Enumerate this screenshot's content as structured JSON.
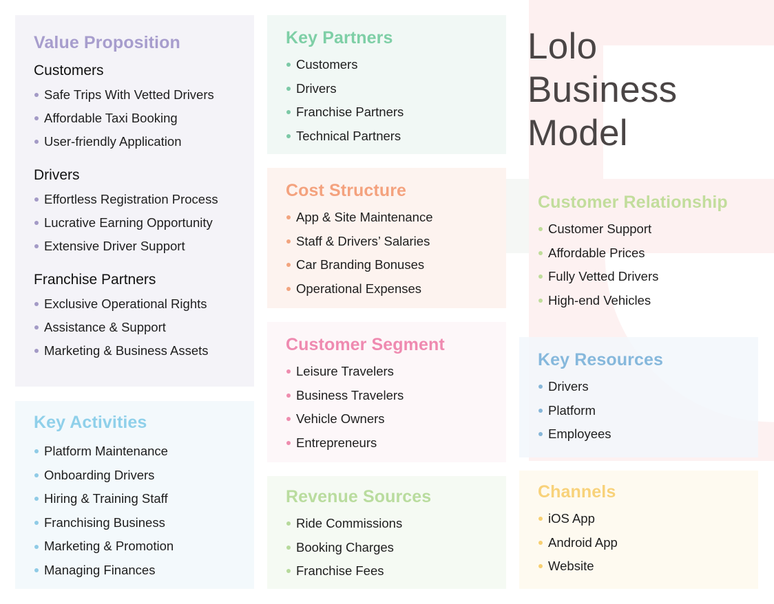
{
  "title": {
    "line1": "Lolo",
    "line2": "Business",
    "line3": "Model"
  },
  "value_proposition": {
    "heading": "Value Proposition",
    "groups": [
      {
        "name": "Customers",
        "items": [
          "Safe Trips With Vetted Drivers",
          "Affordable Taxi Booking",
          "User-friendly Application"
        ]
      },
      {
        "name": "Drivers",
        "items": [
          "Effortless Registration Process",
          "Lucrative Earning Opportunity",
          "Extensive Driver Support"
        ]
      },
      {
        "name": "Franchise Partners",
        "items": [
          "Exclusive Operational Rights",
          "Assistance & Support",
          "Marketing & Business Assets"
        ]
      }
    ]
  },
  "key_activities": {
    "heading": "Key Activities",
    "items": [
      "Platform Maintenance",
      "Onboarding Drivers",
      "Hiring & Training Staff",
      "Franchising Business",
      "Marketing & Promotion",
      "Managing Finances"
    ]
  },
  "key_partners": {
    "heading": "Key Partners",
    "items": [
      "Customers",
      "Drivers",
      "Franchise Partners",
      "Technical Partners"
    ]
  },
  "cost_structure": {
    "heading": "Cost Structure",
    "items": [
      "App & Site Maintenance",
      "Staff & Drivers’ Salaries",
      "Car Branding Bonuses",
      "Operational Expenses"
    ]
  },
  "customer_segment": {
    "heading": "Customer Segment",
    "items": [
      "Leisure Travelers",
      "Business Travelers",
      "Vehicle Owners",
      "Entrepreneurs"
    ]
  },
  "revenue_sources": {
    "heading": "Revenue Sources",
    "items": [
      "Ride Commissions",
      "Booking Charges",
      "Franchise Fees"
    ]
  },
  "customer_relationship": {
    "heading": "Customer Relationship",
    "items": [
      "Customer Support",
      "Affordable Prices",
      "Fully Vetted Drivers",
      "High-end Vehicles"
    ]
  },
  "key_resources": {
    "heading": "Key Resources",
    "items": [
      "Drivers",
      "Platform",
      "Employees"
    ]
  },
  "channels": {
    "heading": "Channels",
    "items": [
      "iOS App",
      "Android App",
      "Website"
    ]
  },
  "colors": {
    "value_proposition": "#a79dcd",
    "key_activities": "#8fd0ea",
    "key_partners": "#7ecfa6",
    "cost_structure": "#f4a27e",
    "customer_segment": "#ef8ab0",
    "revenue_sources": "#b9dc9e",
    "customer_relationship": "#c2dd9c",
    "key_resources": "#86b8dc",
    "channels": "#f8d27a"
  }
}
